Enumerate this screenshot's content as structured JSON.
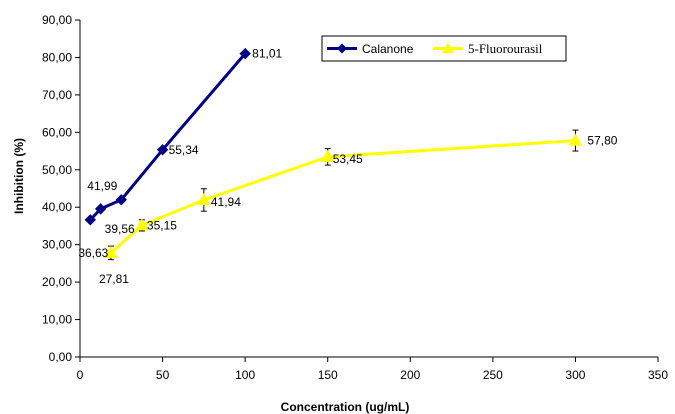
{
  "chart_data": {
    "type": "line",
    "title": "",
    "xlabel": "Concentration (ug/mL)",
    "ylabel": "Inhibition (%)",
    "xlim": [
      0,
      350
    ],
    "ylim": [
      0,
      90
    ],
    "x_ticks": [
      "0",
      "50",
      "100",
      "150",
      "200",
      "250",
      "300",
      "350"
    ],
    "y_ticks": [
      "0,00",
      "10,00",
      "20,00",
      "30,00",
      "40,00",
      "50,00",
      "60,00",
      "70,00",
      "80,00",
      "90,00"
    ],
    "grid": false,
    "legend_placement": "top-right",
    "series": [
      {
        "name": "Calanone",
        "color": "#000080",
        "marker": "diamond",
        "x": [
          6.25,
          12.5,
          25,
          50,
          100
        ],
        "y": [
          36.63,
          39.56,
          41.99,
          55.34,
          81.01
        ],
        "labels": [
          "36,63",
          "39,56",
          "41,99",
          "55,34",
          "81,01"
        ]
      },
      {
        "name": "5-Fluorourasil",
        "color": "#ffff00",
        "marker": "triangle",
        "x": [
          18.75,
          37.5,
          75,
          150,
          300
        ],
        "y": [
          27.81,
          35.15,
          41.94,
          53.45,
          57.8
        ],
        "error": [
          1.8,
          1.5,
          3,
          2.2,
          2.8
        ],
        "labels": [
          "27,81",
          "35,15",
          "41,94",
          "53,45",
          "57,80"
        ]
      }
    ]
  }
}
